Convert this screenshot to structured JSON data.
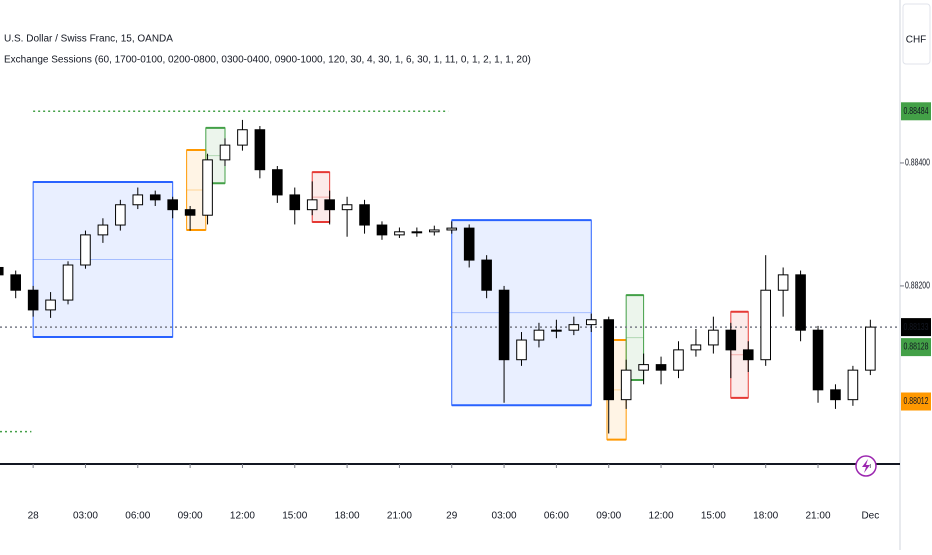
{
  "chart_data": {
    "type": "candlestick",
    "title": "U.S. Dollar / Swiss Franc, 15, OANDA",
    "subtitle": "Exchange Sessions (60, 1700-0100, 0200-0800, 0300-0400, 0900-1000, 120, 30, 4, 30, 1, 6, 30, 1, 11, 0, 1, 2, 1, 1, 20)",
    "currency": "CHF",
    "x": [
      -2,
      -1,
      0,
      1,
      2,
      3,
      4,
      5,
      6,
      7,
      8,
      9,
      10,
      11,
      12,
      13,
      14,
      15,
      16,
      17,
      18,
      19,
      20,
      21,
      22,
      23,
      24,
      25,
      26,
      27,
      28,
      29,
      30,
      31,
      32,
      33,
      34,
      35,
      36,
      37,
      38,
      39,
      40,
      41,
      42,
      43,
      44,
      45,
      46,
      47,
      48
    ],
    "open": [
      0.8823,
      0.88218,
      0.88193,
      0.88161,
      0.88177,
      0.88234,
      0.88283,
      0.88299,
      0.88332,
      0.88348,
      0.8834,
      0.88324,
      0.88315,
      0.88405,
      0.88429,
      0.88454,
      0.88389,
      0.88348,
      0.88324,
      0.8834,
      0.88324,
      0.88332,
      0.88299,
      0.88283,
      0.88288,
      0.88288,
      0.88291,
      0.88294,
      0.88242,
      0.88193,
      0.8808,
      0.88112,
      0.88128,
      0.88128,
      0.88137,
      0.88145,
      0.88015,
      0.88063,
      0.88072,
      0.88063,
      0.88096,
      0.88104,
      0.88128,
      0.88096,
      0.8808,
      0.88193,
      0.88218,
      0.88128,
      0.88031,
      0.88015,
      0.88063
    ],
    "high": [
      0.8824,
      0.88225,
      0.882,
      0.8819,
      0.8824,
      0.8829,
      0.8831,
      0.8834,
      0.8836,
      0.88355,
      0.88345,
      0.8833,
      0.88415,
      0.8844,
      0.8847,
      0.8846,
      0.88395,
      0.8836,
      0.8837,
      0.88355,
      0.88345,
      0.8834,
      0.88305,
      0.88295,
      0.88295,
      0.88298,
      0.88305,
      0.883,
      0.8825,
      0.882,
      0.88125,
      0.8814,
      0.88145,
      0.8815,
      0.88155,
      0.8815,
      0.8808,
      0.8809,
      0.88085,
      0.8811,
      0.8813,
      0.8815,
      0.8814,
      0.8811,
      0.8825,
      0.8823,
      0.88225,
      0.88135,
      0.8804,
      0.8807,
      0.88145
    ],
    "low": [
      0.88205,
      0.8818,
      0.8815,
      0.88148,
      0.8817,
      0.88228,
      0.8827,
      0.8829,
      0.88325,
      0.8833,
      0.8831,
      0.8829,
      0.883,
      0.88395,
      0.8842,
      0.88375,
      0.88335,
      0.883,
      0.88315,
      0.883,
      0.8828,
      0.88285,
      0.88275,
      0.88278,
      0.8828,
      0.88282,
      0.88285,
      0.8823,
      0.8818,
      0.8801,
      0.8807,
      0.881,
      0.88115,
      0.8812,
      0.88125,
      0.8796,
      0.88,
      0.8804,
      0.8804,
      0.8805,
      0.88085,
      0.8809,
      0.8805,
      0.8806,
      0.8807,
      0.8815,
      0.8811,
      0.8801,
      0.88,
      0.88005,
      0.88055
    ],
    "close": [
      0.88218,
      0.88193,
      0.88161,
      0.88177,
      0.88234,
      0.88283,
      0.88299,
      0.88332,
      0.88348,
      0.8834,
      0.88324,
      0.88315,
      0.88405,
      0.88429,
      0.88454,
      0.88389,
      0.88348,
      0.88324,
      0.8834,
      0.88324,
      0.88332,
      0.88299,
      0.88283,
      0.88288,
      0.88288,
      0.88291,
      0.88294,
      0.88242,
      0.88193,
      0.8808,
      0.88112,
      0.88128,
      0.88128,
      0.88137,
      0.88145,
      0.88015,
      0.88063,
      0.88072,
      0.88063,
      0.88096,
      0.88104,
      0.88128,
      0.88096,
      0.8808,
      0.88193,
      0.88218,
      0.88128,
      0.88031,
      0.88015,
      0.88063,
      0.88133
    ],
    "up_color": "#ffffff",
    "down_color": "#000000",
    "sessions": [
      {
        "start": 0,
        "end": 8,
        "high": 0.88369,
        "low": 0.88117,
        "color": "#2962ff"
      },
      {
        "start": 8.8,
        "end": 9.9,
        "high": 0.88421,
        "low": 0.88291,
        "color": "#ff9800"
      },
      {
        "start": 9.9,
        "end": 11,
        "high": 0.88457,
        "low": 0.88367,
        "color": "#43a047"
      },
      {
        "start": 16,
        "end": 17,
        "high": 0.88385,
        "low": 0.88304,
        "color": "#e53935"
      },
      {
        "start": 24,
        "end": 32,
        "high": 0.88307,
        "low": 0.88006,
        "color": "#2962ff"
      },
      {
        "start": 32.9,
        "end": 34,
        "high": 0.88112,
        "low": 0.8795,
        "color": "#ff9800"
      },
      {
        "start": 34,
        "end": 35,
        "high": 0.88185,
        "low": 0.88047,
        "color": "#43a047"
      },
      {
        "start": 40,
        "end": 41,
        "high": 0.88158,
        "low": 0.88018,
        "color": "#e53935"
      }
    ],
    "levels": [
      {
        "value": 0.88484,
        "start": 0,
        "end": 23.8,
        "color": "#43a047"
      },
      {
        "value": 0.87963,
        "start": -1.9,
        "end": -0.1,
        "color": "#43a047"
      },
      {
        "value": 0.88133,
        "start": -1.9,
        "end": 49.7,
        "color": "#787b86"
      }
    ],
    "price_labels": [
      {
        "value": 0.88484,
        "color": "#43a047"
      },
      {
        "value": 0.88133,
        "color": "#000000"
      },
      {
        "value": 0.88128,
        "color": "#43a047"
      },
      {
        "value": 0.88012,
        "color": "#ff9800"
      }
    ],
    "xlim": [
      -1.9,
      49.7
    ],
    "xticks": [
      {
        "value": 0,
        "label": "28"
      },
      {
        "value": 3,
        "label": "03:00"
      },
      {
        "value": 6,
        "label": "06:00"
      },
      {
        "value": 9,
        "label": "09:00"
      },
      {
        "value": 12,
        "label": "12:00"
      },
      {
        "value": 15,
        "label": "15:00"
      },
      {
        "value": 18,
        "label": "18:00"
      },
      {
        "value": 21,
        "label": "21:00"
      },
      {
        "value": 24,
        "label": "29"
      },
      {
        "value": 27,
        "label": "03:00"
      },
      {
        "value": 30,
        "label": "06:00"
      },
      {
        "value": 33,
        "label": "09:00"
      },
      {
        "value": 36,
        "label": "12:00"
      },
      {
        "value": 39,
        "label": "15:00"
      },
      {
        "value": 42,
        "label": "18:00"
      },
      {
        "value": 45,
        "label": "21:00"
      },
      {
        "value": 48,
        "label": "Dec"
      }
    ],
    "ylim": [
      0.87912,
      0.88665
    ],
    "yticks": [
      {
        "value": 0.884,
        "label": "0.88400"
      },
      {
        "value": 0.882,
        "label": "0.88200"
      }
    ]
  }
}
